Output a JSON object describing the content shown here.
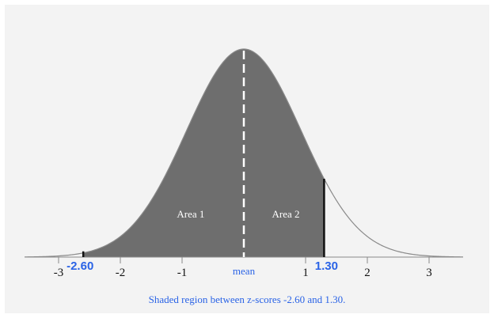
{
  "diagram": {
    "z_left": -2.6,
    "z_right": 1.3,
    "z_left_label": "-2.60",
    "z_right_label": "1.30",
    "axis_ticks": [
      {
        "value": -3,
        "label": "-3"
      },
      {
        "value": -2,
        "label": "-2"
      },
      {
        "value": -1,
        "label": "-1"
      },
      {
        "value": 1,
        "label": "1"
      },
      {
        "value": 2,
        "label": "2"
      },
      {
        "value": 3,
        "label": "3"
      }
    ],
    "mean_label": "mean",
    "area1_label": "Area 1",
    "area2_label": "Area 2",
    "caption": "Shaded region between z-scores -2.60 and 1.30.",
    "colors": {
      "shade": "#6e6e6e",
      "curve": "#8a8a8a",
      "accent": "#2a63e6",
      "background": "#f3f3f3"
    }
  }
}
